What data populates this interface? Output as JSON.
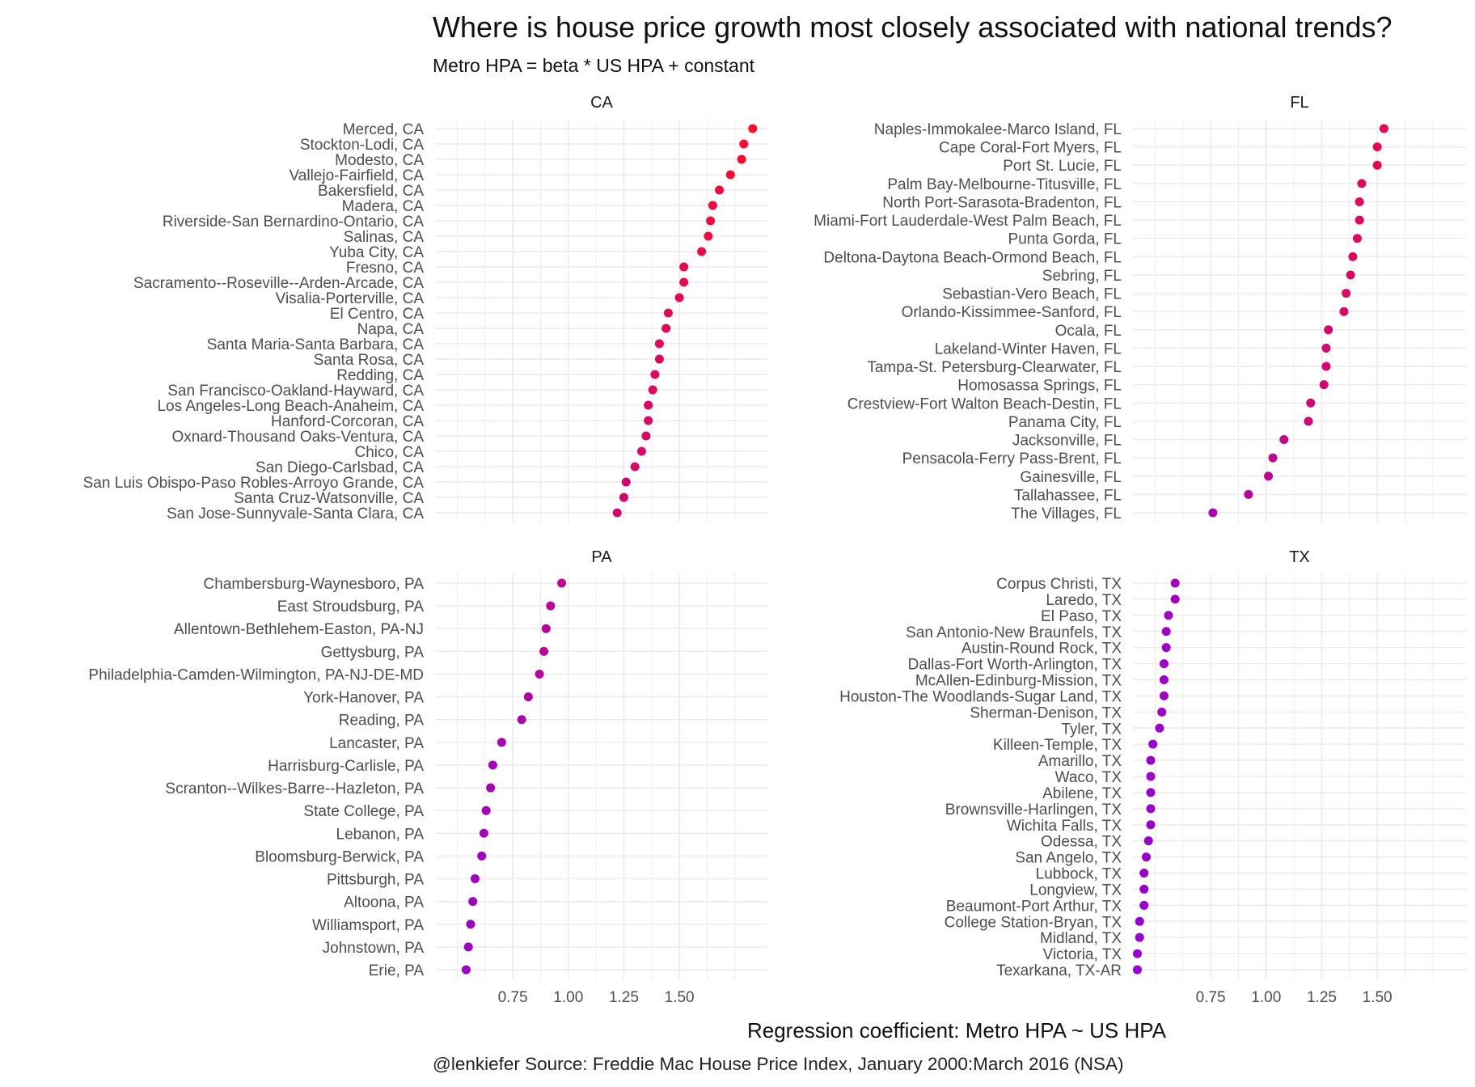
{
  "title": "Where is house price growth most closely associated with national trends?",
  "subtitle": "Metro HPA = beta * US HPA + constant",
  "caption": "@lenkiefer Source: Freddie Mac House Price Index, January 2000:March 2016 (NSA)",
  "colors": {
    "low": "#9400d3",
    "high": "#ff0a2a",
    "grid": "#ebebeb",
    "text": "#4d4d4d"
  },
  "chart_data": {
    "type": "scatter",
    "xlabel": "Regression coefficient: Metro HPA ~ US HPA",
    "xticks": [
      0.75,
      1.0,
      1.25,
      1.5
    ],
    "xtick_labels": [
      "0.75",
      "1.00",
      "1.25",
      "1.50"
    ],
    "xlim": [
      0.4,
      1.9
    ],
    "grid": true,
    "legend": "none",
    "panels": [
      {
        "name": "CA",
        "points": [
          {
            "label": "Merced, CA",
            "x": 1.83
          },
          {
            "label": "Stockton-Lodi, CA",
            "x": 1.79
          },
          {
            "label": "Modesto, CA",
            "x": 1.78
          },
          {
            "label": "Vallejo-Fairfield, CA",
            "x": 1.73
          },
          {
            "label": "Bakersfield, CA",
            "x": 1.68
          },
          {
            "label": "Madera, CA",
            "x": 1.65
          },
          {
            "label": "Riverside-San Bernardino-Ontario, CA",
            "x": 1.64
          },
          {
            "label": "Salinas, CA",
            "x": 1.63
          },
          {
            "label": "Yuba City, CA",
            "x": 1.6
          },
          {
            "label": "Fresno, CA",
            "x": 1.52
          },
          {
            "label": "Sacramento--Roseville--Arden-Arcade, CA",
            "x": 1.52
          },
          {
            "label": "Visalia-Porterville, CA",
            "x": 1.5
          },
          {
            "label": "El Centro, CA",
            "x": 1.45
          },
          {
            "label": "Napa, CA",
            "x": 1.44
          },
          {
            "label": "Santa Maria-Santa Barbara, CA",
            "x": 1.41
          },
          {
            "label": "Santa Rosa, CA",
            "x": 1.41
          },
          {
            "label": "Redding, CA",
            "x": 1.39
          },
          {
            "label": "San Francisco-Oakland-Hayward, CA",
            "x": 1.38
          },
          {
            "label": "Los Angeles-Long Beach-Anaheim, CA",
            "x": 1.36
          },
          {
            "label": "Hanford-Corcoran, CA",
            "x": 1.36
          },
          {
            "label": "Oxnard-Thousand Oaks-Ventura, CA",
            "x": 1.35
          },
          {
            "label": "Chico, CA",
            "x": 1.33
          },
          {
            "label": "San Diego-Carlsbad, CA",
            "x": 1.3
          },
          {
            "label": "San Luis Obispo-Paso Robles-Arroyo Grande, CA",
            "x": 1.26
          },
          {
            "label": "Santa Cruz-Watsonville, CA",
            "x": 1.25
          },
          {
            "label": "San Jose-Sunnyvale-Santa Clara, CA",
            "x": 1.22
          }
        ]
      },
      {
        "name": "FL",
        "points": [
          {
            "label": "Naples-Immokalee-Marco Island, FL",
            "x": 1.53
          },
          {
            "label": "Cape Coral-Fort Myers, FL",
            "x": 1.5
          },
          {
            "label": "Port St. Lucie, FL",
            "x": 1.5
          },
          {
            "label": "Palm Bay-Melbourne-Titusville, FL",
            "x": 1.43
          },
          {
            "label": "North Port-Sarasota-Bradenton, FL",
            "x": 1.42
          },
          {
            "label": "Miami-Fort Lauderdale-West Palm Beach, FL",
            "x": 1.42
          },
          {
            "label": "Punta Gorda, FL",
            "x": 1.41
          },
          {
            "label": "Deltona-Daytona Beach-Ormond Beach, FL",
            "x": 1.39
          },
          {
            "label": "Sebring, FL",
            "x": 1.38
          },
          {
            "label": "Sebastian-Vero Beach, FL",
            "x": 1.36
          },
          {
            "label": "Orlando-Kissimmee-Sanford, FL",
            "x": 1.35
          },
          {
            "label": "Ocala, FL",
            "x": 1.28
          },
          {
            "label": "Lakeland-Winter Haven, FL",
            "x": 1.27
          },
          {
            "label": "Tampa-St. Petersburg-Clearwater, FL",
            "x": 1.27
          },
          {
            "label": "Homosassa Springs, FL",
            "x": 1.26
          },
          {
            "label": "Crestview-Fort Walton Beach-Destin, FL",
            "x": 1.2
          },
          {
            "label": "Panama City, FL",
            "x": 1.19
          },
          {
            "label": "Jacksonville, FL",
            "x": 1.08
          },
          {
            "label": "Pensacola-Ferry Pass-Brent, FL",
            "x": 1.03
          },
          {
            "label": "Gainesville, FL",
            "x": 1.01
          },
          {
            "label": "Tallahassee, FL",
            "x": 0.92
          },
          {
            "label": "The Villages, FL",
            "x": 0.76
          }
        ]
      },
      {
        "name": "PA",
        "points": [
          {
            "label": "Chambersburg-Waynesboro, PA",
            "x": 0.97
          },
          {
            "label": "East Stroudsburg, PA",
            "x": 0.92
          },
          {
            "label": "Allentown-Bethlehem-Easton, PA-NJ",
            "x": 0.9
          },
          {
            "label": "Gettysburg, PA",
            "x": 0.89
          },
          {
            "label": "Philadelphia-Camden-Wilmington, PA-NJ-DE-MD",
            "x": 0.87
          },
          {
            "label": "York-Hanover, PA",
            "x": 0.82
          },
          {
            "label": "Reading, PA",
            "x": 0.79
          },
          {
            "label": "Lancaster, PA",
            "x": 0.7
          },
          {
            "label": "Harrisburg-Carlisle, PA",
            "x": 0.66
          },
          {
            "label": "Scranton--Wilkes-Barre--Hazleton, PA",
            "x": 0.65
          },
          {
            "label": "State College, PA",
            "x": 0.63
          },
          {
            "label": "Lebanon, PA",
            "x": 0.62
          },
          {
            "label": "Bloomsburg-Berwick, PA",
            "x": 0.61
          },
          {
            "label": "Pittsburgh, PA",
            "x": 0.58
          },
          {
            "label": "Altoona, PA",
            "x": 0.57
          },
          {
            "label": "Williamsport, PA",
            "x": 0.56
          },
          {
            "label": "Johnstown, PA",
            "x": 0.55
          },
          {
            "label": "Erie, PA",
            "x": 0.54
          }
        ]
      },
      {
        "name": "TX",
        "points": [
          {
            "label": "Corpus Christi, TX",
            "x": 0.59
          },
          {
            "label": "Laredo, TX",
            "x": 0.59
          },
          {
            "label": "El Paso, TX",
            "x": 0.56
          },
          {
            "label": "San Antonio-New Braunfels, TX",
            "x": 0.55
          },
          {
            "label": "Austin-Round Rock, TX",
            "x": 0.55
          },
          {
            "label": "Dallas-Fort Worth-Arlington, TX",
            "x": 0.54
          },
          {
            "label": "McAllen-Edinburg-Mission, TX",
            "x": 0.54
          },
          {
            "label": "Houston-The Woodlands-Sugar Land, TX",
            "x": 0.54
          },
          {
            "label": "Sherman-Denison, TX",
            "x": 0.53
          },
          {
            "label": "Tyler, TX",
            "x": 0.52
          },
          {
            "label": "Killeen-Temple, TX",
            "x": 0.49
          },
          {
            "label": "Amarillo, TX",
            "x": 0.48
          },
          {
            "label": "Waco, TX",
            "x": 0.48
          },
          {
            "label": "Abilene, TX",
            "x": 0.48
          },
          {
            "label": "Brownsville-Harlingen, TX",
            "x": 0.48
          },
          {
            "label": "Wichita Falls, TX",
            "x": 0.48
          },
          {
            "label": "Odessa, TX",
            "x": 0.47
          },
          {
            "label": "San Angelo, TX",
            "x": 0.46
          },
          {
            "label": "Lubbock, TX",
            "x": 0.45
          },
          {
            "label": "Longview, TX",
            "x": 0.45
          },
          {
            "label": "Beaumont-Port Arthur, TX",
            "x": 0.45
          },
          {
            "label": "College Station-Bryan, TX",
            "x": 0.43
          },
          {
            "label": "Midland, TX",
            "x": 0.43
          },
          {
            "label": "Victoria, TX",
            "x": 0.42
          },
          {
            "label": "Texarkana, TX-AR",
            "x": 0.42
          }
        ]
      }
    ]
  }
}
